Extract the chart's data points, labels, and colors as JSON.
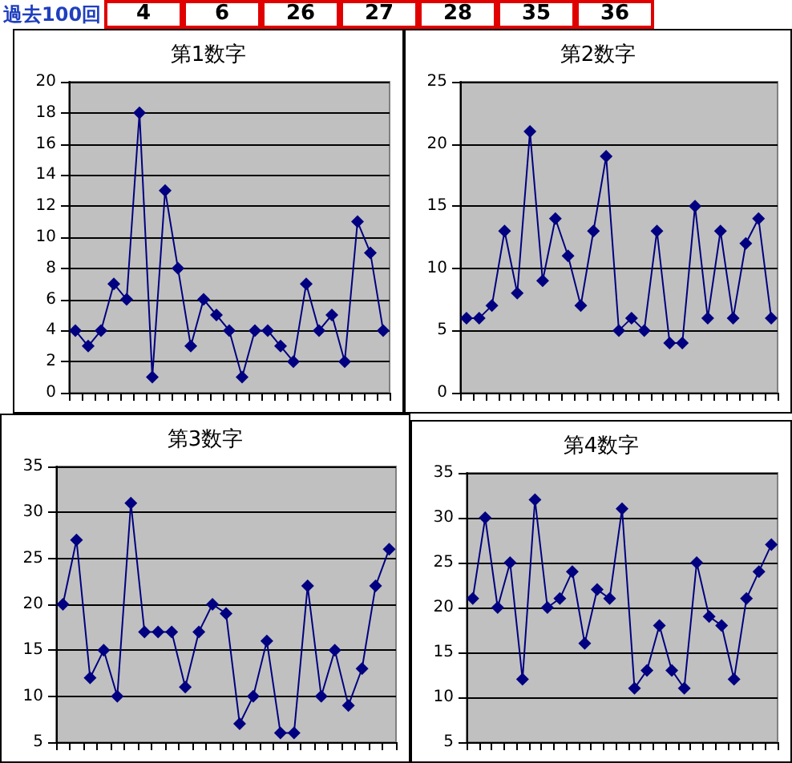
{
  "chart_data": [
    {
      "type": "other",
      "title": "過去100回",
      "annotations": [
        "4",
        "6",
        "26",
        "27",
        "28",
        "35",
        "36"
      ]
    },
    {
      "type": "line",
      "title": "第1数字",
      "categories": [
        null,
        null,
        null,
        null,
        null,
        null,
        null,
        null,
        null,
        null,
        null,
        null,
        null,
        null,
        null,
        null,
        null,
        null,
        null,
        null,
        null,
        null,
        null,
        null,
        null
      ],
      "series": [
        {
          "color": "#000080",
          "values": [
            4,
            3,
            4,
            7,
            6,
            18,
            1,
            13,
            8,
            3,
            6,
            5,
            4,
            1,
            4,
            4,
            3,
            2,
            7,
            4,
            5,
            2,
            11,
            9,
            4
          ]
        }
      ],
      "ylim": [
        0,
        20
      ],
      "yticks": [
        0,
        2,
        4,
        6,
        8,
        10,
        12,
        14,
        16,
        18,
        20
      ],
      "grid": "y",
      "tick_labels": "y",
      "marker": "diamond"
    },
    {
      "type": "line",
      "title": "第2数字",
      "categories": [
        null,
        null,
        null,
        null,
        null,
        null,
        null,
        null,
        null,
        null,
        null,
        null,
        null,
        null,
        null,
        null,
        null,
        null,
        null,
        null,
        null,
        null,
        null,
        null,
        null
      ],
      "series": [
        {
          "color": "#000080",
          "values": [
            6,
            6,
            7,
            13,
            8,
            21,
            9,
            14,
            11,
            7,
            13,
            19,
            5,
            6,
            5,
            13,
            4,
            4,
            15,
            6,
            13,
            6,
            12,
            14,
            6
          ]
        }
      ],
      "ylim": [
        0,
        25
      ],
      "yticks": [
        0,
        5,
        10,
        15,
        20,
        25
      ],
      "grid": "y",
      "tick_labels": "y",
      "marker": "diamond"
    },
    {
      "type": "line",
      "title": "第3数字",
      "categories": [
        null,
        null,
        null,
        null,
        null,
        null,
        null,
        null,
        null,
        null,
        null,
        null,
        null,
        null,
        null,
        null,
        null,
        null,
        null,
        null,
        null,
        null,
        null,
        null,
        null
      ],
      "series": [
        {
          "color": "#000080",
          "values": [
            20,
            27,
            12,
            15,
            10,
            31,
            17,
            17,
            17,
            11,
            17,
            20,
            19,
            7,
            10,
            16,
            6,
            6,
            22,
            10,
            15,
            9,
            13,
            22,
            26
          ]
        }
      ],
      "ylim": [
        5,
        35
      ],
      "yticks": [
        5,
        10,
        15,
        20,
        25,
        30,
        35
      ],
      "grid": "y",
      "tick_labels": "y",
      "marker": "diamond"
    },
    {
      "type": "line",
      "title": "第4数字",
      "categories": [
        null,
        null,
        null,
        null,
        null,
        null,
        null,
        null,
        null,
        null,
        null,
        null,
        null,
        null,
        null,
        null,
        null,
        null,
        null,
        null,
        null,
        null,
        null,
        null,
        null
      ],
      "series": [
        {
          "color": "#000080",
          "values": [
            21,
            30,
            20,
            25,
            12,
            32,
            20,
            21,
            24,
            16,
            22,
            21,
            31,
            11,
            13,
            18,
            13,
            11,
            25,
            19,
            18,
            12,
            21,
            24,
            27
          ]
        }
      ],
      "ylim": [
        5,
        35
      ],
      "yticks": [
        5,
        10,
        15,
        20,
        25,
        30,
        35
      ],
      "grid": "y",
      "tick_labels": "y",
      "marker": "diamond"
    }
  ]
}
